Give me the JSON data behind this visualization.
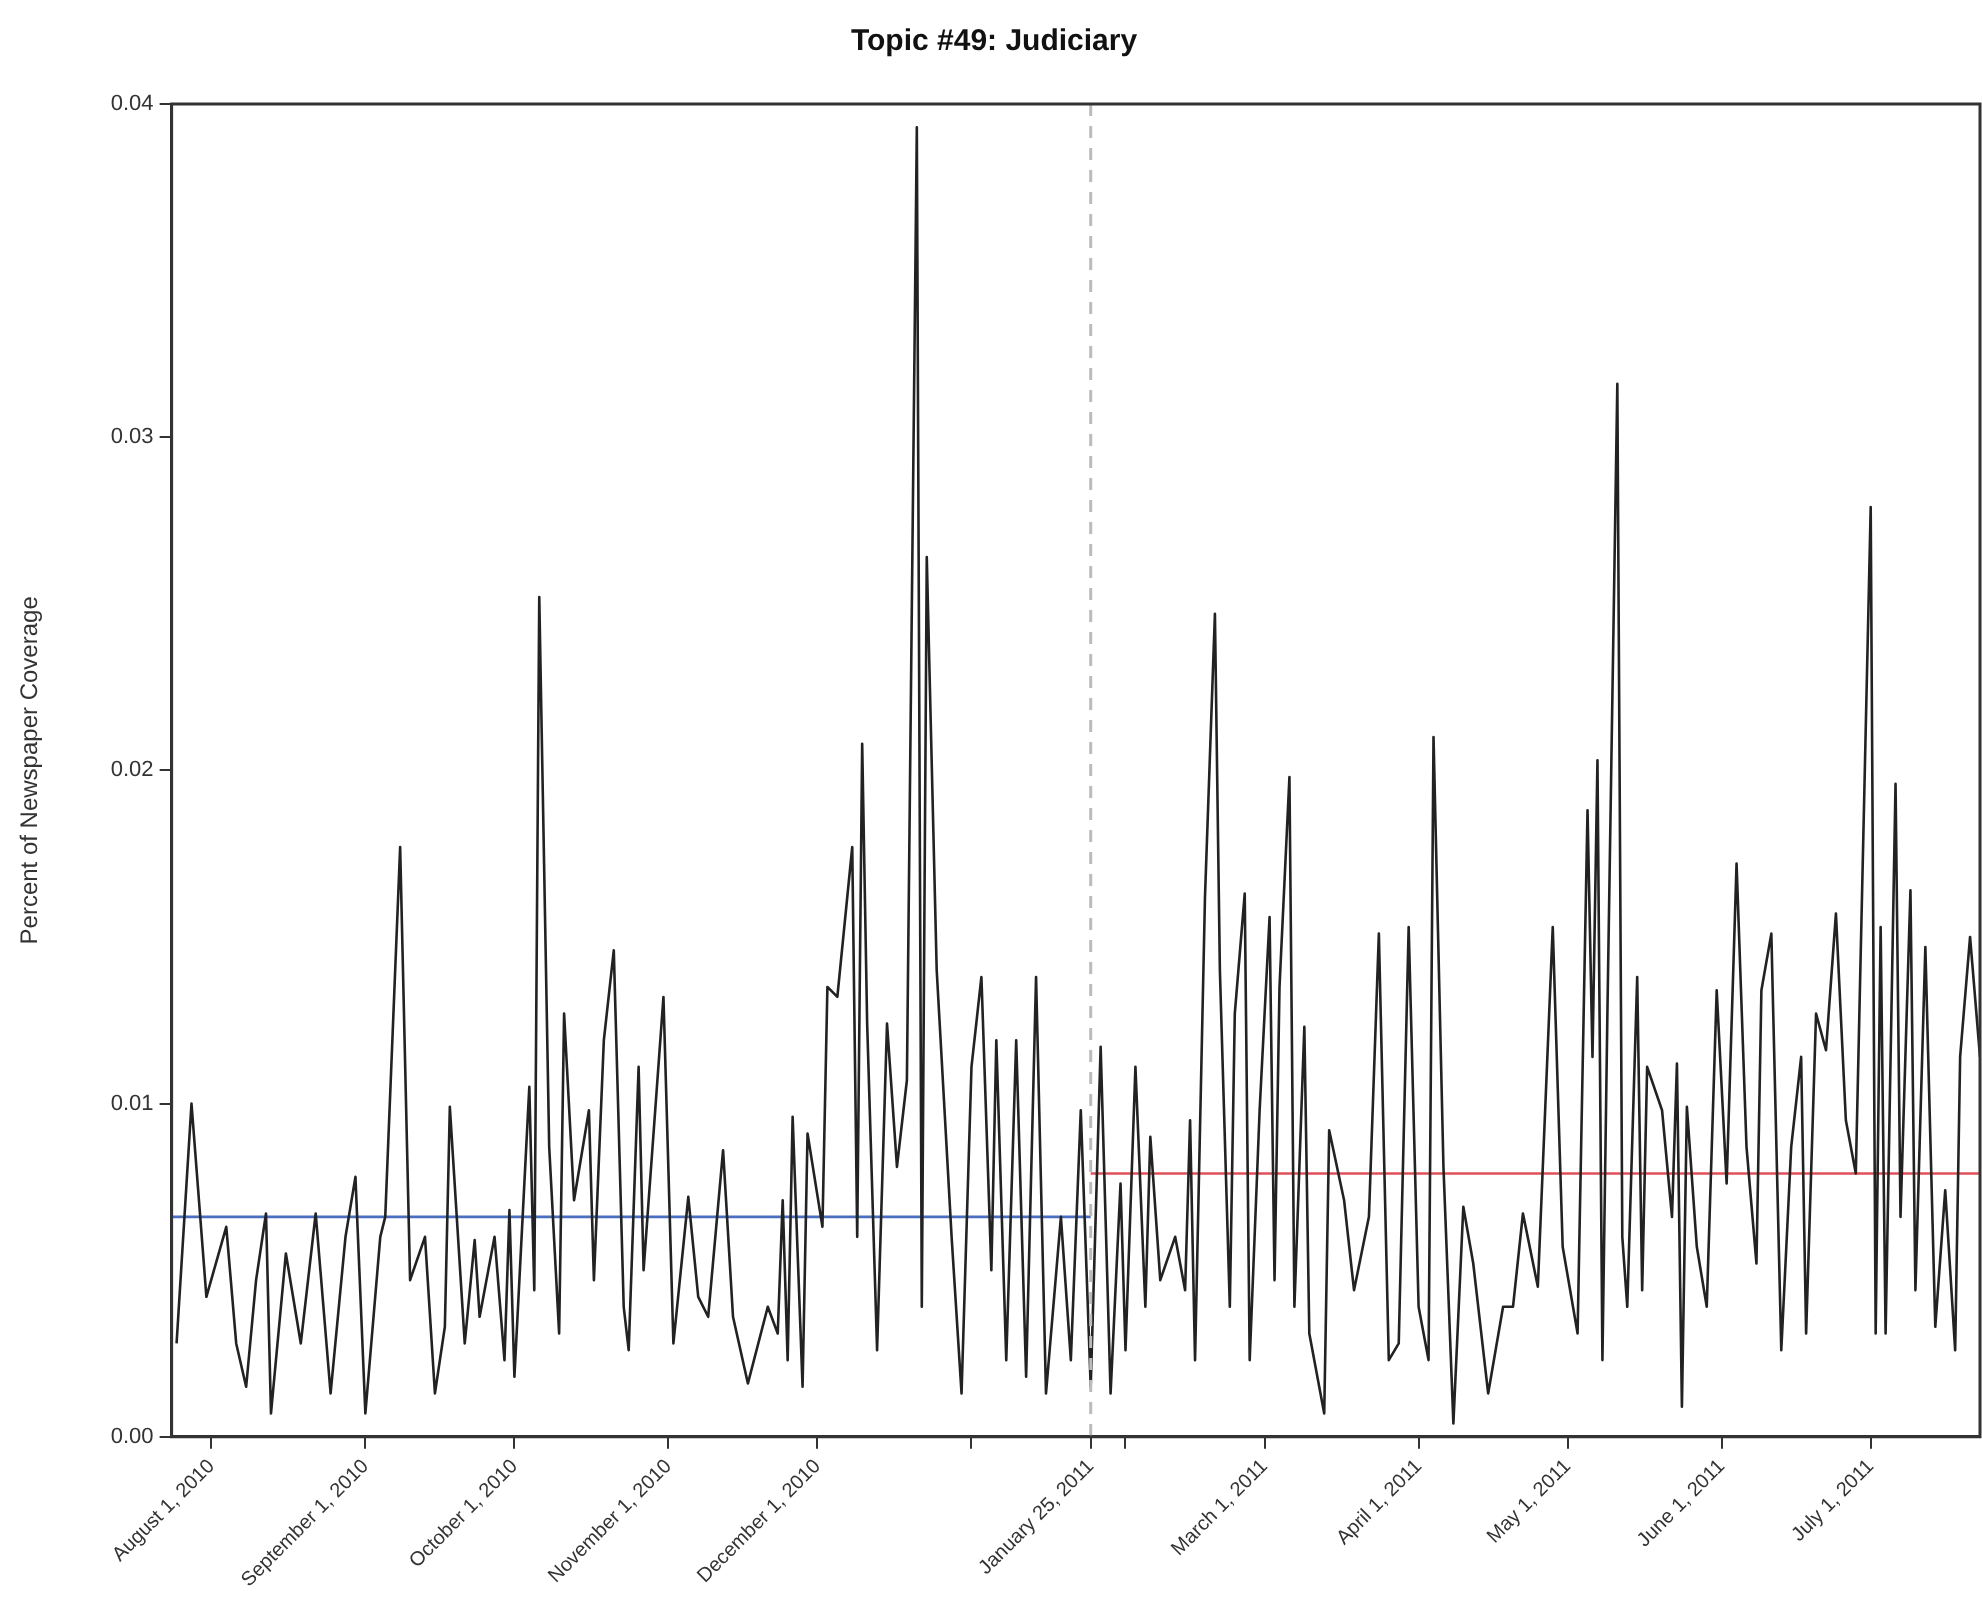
{
  "chart_data": {
    "type": "line",
    "title": "Topic #49: Judiciary",
    "ylabel": "Percent of Newspaper Coverage",
    "xlim": [
      "2010-07-24",
      "2011-07-23"
    ],
    "xticks": [
      {
        "value": "2010-08-01",
        "label": "August 1, 2010"
      },
      {
        "value": "2010-09-01",
        "label": "September 1, 2010"
      },
      {
        "value": "2010-10-01",
        "label": "October 1, 2010"
      },
      {
        "value": "2010-11-01",
        "label": "November 1, 2010"
      },
      {
        "value": "2010-12-01",
        "label": "December 1, 2010"
      },
      {
        "value": "2011-01-01",
        "label": null
      },
      {
        "value": "2011-01-25",
        "label": "January 25, 2011"
      },
      {
        "value": "2011-02-01",
        "label": null
      },
      {
        "value": "2011-03-01",
        "label": "March 1, 2011"
      },
      {
        "value": "2011-04-01",
        "label": "April 1, 2011"
      },
      {
        "value": "2011-05-01",
        "label": "May 1, 2011"
      },
      {
        "value": "2011-06-01",
        "label": "June 1, 2011"
      },
      {
        "value": "2011-07-01",
        "label": "July 1, 2011"
      }
    ],
    "ylim": [
      0,
      0.04
    ],
    "yticks": [
      {
        "value": 0,
        "label": "0.00"
      },
      {
        "value": 0.01,
        "label": "0.01"
      },
      {
        "value": 0.02,
        "label": "0.02"
      },
      {
        "value": 0.03,
        "label": "0.03"
      },
      {
        "value": 0.04,
        "label": "0.04"
      }
    ],
    "grid": false,
    "legend": false,
    "marker": "none",
    "line_style": "solid",
    "ref_lines": [
      {
        "axis": "x",
        "value": "2011-01-25",
        "color": "#bbbbbb",
        "line_style": "dashed"
      }
    ],
    "series": [
      {
        "color": "#222222",
        "x": [
          "2010-07-25",
          "2010-07-28",
          "2010-07-31",
          "2010-08-04",
          "2010-08-06",
          "2010-08-08",
          "2010-08-10",
          "2010-08-12",
          "2010-08-13",
          "2010-08-16",
          "2010-08-19",
          "2010-08-22",
          "2010-08-25",
          "2010-08-28",
          "2010-08-30",
          "2010-09-01",
          "2010-09-04",
          "2010-09-05",
          "2010-09-07",
          "2010-09-08",
          "2010-09-10",
          "2010-09-13",
          "2010-09-15",
          "2010-09-17",
          "2010-09-18",
          "2010-09-21",
          "2010-09-23",
          "2010-09-24",
          "2010-09-27",
          "2010-09-29",
          "2010-09-30",
          "2010-10-01",
          "2010-10-04",
          "2010-10-05",
          "2010-10-06",
          "2010-10-08",
          "2010-10-10",
          "2010-10-11",
          "2010-10-13",
          "2010-10-16",
          "2010-10-17",
          "2010-10-19",
          "2010-10-21",
          "2010-10-23",
          "2010-10-24",
          "2010-10-26",
          "2010-10-27",
          "2010-10-31",
          "2010-11-02",
          "2010-11-05",
          "2010-11-07",
          "2010-11-09",
          "2010-11-12",
          "2010-11-14",
          "2010-11-17",
          "2010-11-21",
          "2010-11-23",
          "2010-11-24",
          "2010-11-25",
          "2010-11-26",
          "2010-11-28",
          "2010-11-29",
          "2010-12-02",
          "2010-12-03",
          "2010-12-05",
          "2010-12-08",
          "2010-12-09",
          "2010-12-10",
          "2010-12-11",
          "2010-12-13",
          "2010-12-15",
          "2010-12-17",
          "2010-12-19",
          "2010-12-21",
          "2010-12-22",
          "2010-12-23",
          "2010-12-25",
          "2010-12-28",
          "2010-12-30",
          "2011-01-01",
          "2011-01-03",
          "2011-01-05",
          "2011-01-06",
          "2011-01-08",
          "2011-01-10",
          "2011-01-12",
          "2011-01-14",
          "2011-01-16",
          "2011-01-19",
          "2011-01-21",
          "2011-01-23",
          "2011-01-25",
          "2011-01-27",
          "2011-01-29",
          "2011-01-31",
          "2011-02-01",
          "2011-02-03",
          "2011-02-05",
          "2011-02-06",
          "2011-02-08",
          "2011-02-11",
          "2011-02-13",
          "2011-02-14",
          "2011-02-15",
          "2011-02-17",
          "2011-02-19",
          "2011-02-20",
          "2011-02-22",
          "2011-02-23",
          "2011-02-25",
          "2011-02-26",
          "2011-02-28",
          "2011-03-02",
          "2011-03-03",
          "2011-03-04",
          "2011-03-06",
          "2011-03-07",
          "2011-03-09",
          "2011-03-10",
          "2011-03-13",
          "2011-03-14",
          "2011-03-17",
          "2011-03-19",
          "2011-03-22",
          "2011-03-24",
          "2011-03-26",
          "2011-03-28",
          "2011-03-30",
          "2011-04-01",
          "2011-04-03",
          "2011-04-04",
          "2011-04-06",
          "2011-04-08",
          "2011-04-10",
          "2011-04-12",
          "2011-04-15",
          "2011-04-18",
          "2011-04-20",
          "2011-04-22",
          "2011-04-25",
          "2011-04-28",
          "2011-04-30",
          "2011-05-03",
          "2011-05-05",
          "2011-05-06",
          "2011-05-07",
          "2011-05-08",
          "2011-05-09",
          "2011-05-11",
          "2011-05-12",
          "2011-05-13",
          "2011-05-15",
          "2011-05-16",
          "2011-05-17",
          "2011-05-20",
          "2011-05-22",
          "2011-05-23",
          "2011-05-24",
          "2011-05-25",
          "2011-05-27",
          "2011-05-29",
          "2011-05-31",
          "2011-06-02",
          "2011-06-04",
          "2011-06-06",
          "2011-06-08",
          "2011-06-09",
          "2011-06-11",
          "2011-06-13",
          "2011-06-15",
          "2011-06-17",
          "2011-06-18",
          "2011-06-20",
          "2011-06-22",
          "2011-06-24",
          "2011-06-26",
          "2011-06-28",
          "2011-07-01",
          "2011-07-02",
          "2011-07-03",
          "2011-07-04",
          "2011-07-06",
          "2011-07-07",
          "2011-07-09",
          "2011-07-10",
          "2011-07-12",
          "2011-07-14",
          "2011-07-16",
          "2011-07-18",
          "2011-07-19",
          "2011-07-21",
          "2011-07-23"
        ],
        "values": [
          0.0028,
          0.01,
          0.0042,
          0.0063,
          0.0028,
          0.0015,
          0.0047,
          0.0067,
          0.0007,
          0.0055,
          0.0028,
          0.0067,
          0.0013,
          0.006,
          0.0078,
          0.0007,
          0.006,
          0.0066,
          0.014,
          0.0177,
          0.0047,
          0.006,
          0.0013,
          0.0033,
          0.0099,
          0.0028,
          0.0059,
          0.0036,
          0.006,
          0.0023,
          0.0068,
          0.0018,
          0.0105,
          0.0044,
          0.0252,
          0.0087,
          0.0031,
          0.0127,
          0.0071,
          0.0098,
          0.0047,
          0.0119,
          0.0146,
          0.0039,
          0.0026,
          0.0111,
          0.005,
          0.0132,
          0.0028,
          0.0072,
          0.0042,
          0.0036,
          0.0086,
          0.0036,
          0.0016,
          0.0039,
          0.0031,
          0.0071,
          0.0023,
          0.0096,
          0.0015,
          0.0091,
          0.0063,
          0.0135,
          0.0132,
          0.0177,
          0.006,
          0.0208,
          0.0124,
          0.0026,
          0.0124,
          0.0081,
          0.0107,
          0.0393,
          0.0039,
          0.0264,
          0.014,
          0.006,
          0.0013,
          0.0111,
          0.0138,
          0.005,
          0.0119,
          0.0023,
          0.0119,
          0.0018,
          0.0138,
          0.0013,
          0.0066,
          0.0023,
          0.0098,
          0.0015,
          0.0117,
          0.0013,
          0.0076,
          0.0026,
          0.0111,
          0.0039,
          0.009,
          0.0047,
          0.006,
          0.0044,
          0.0095,
          0.0023,
          0.0162,
          0.0247,
          0.014,
          0.0039,
          0.0127,
          0.0163,
          0.0023,
          0.0098,
          0.0156,
          0.0047,
          0.0135,
          0.0198,
          0.0039,
          0.0123,
          0.0031,
          0.0007,
          0.0092,
          0.0071,
          0.0044,
          0.0066,
          0.0151,
          0.0023,
          0.0028,
          0.0153,
          0.0039,
          0.0023,
          0.021,
          0.0081,
          0.0004,
          0.0069,
          0.0052,
          0.0013,
          0.0039,
          0.0039,
          0.0067,
          0.0045,
          0.0153,
          0.0057,
          0.0031,
          0.0188,
          0.0114,
          0.0203,
          0.0023,
          0.0127,
          0.0316,
          0.006,
          0.0039,
          0.0138,
          0.0044,
          0.0111,
          0.0098,
          0.0066,
          0.0112,
          0.0009,
          0.0099,
          0.0057,
          0.0039,
          0.0134,
          0.0076,
          0.0172,
          0.0087,
          0.0052,
          0.0134,
          0.0151,
          0.0026,
          0.0087,
          0.0114,
          0.0031,
          0.0127,
          0.0116,
          0.0157,
          0.0095,
          0.0079,
          0.0279,
          0.0031,
          0.0153,
          0.0031,
          0.0196,
          0.0066,
          0.0164,
          0.0044,
          0.0147,
          0.0033,
          0.0074,
          0.0026,
          0.0114,
          0.015,
          0.0114
        ]
      },
      {
        "color": "#4a6fc0",
        "x": [
          "2010-07-24",
          "2011-01-25"
        ],
        "values": [
          0.0066,
          0.0066
        ]
      },
      {
        "color": "#e0505a",
        "x": [
          "2011-01-25",
          "2011-07-23"
        ],
        "values": [
          0.0079,
          0.0079
        ]
      }
    ]
  }
}
